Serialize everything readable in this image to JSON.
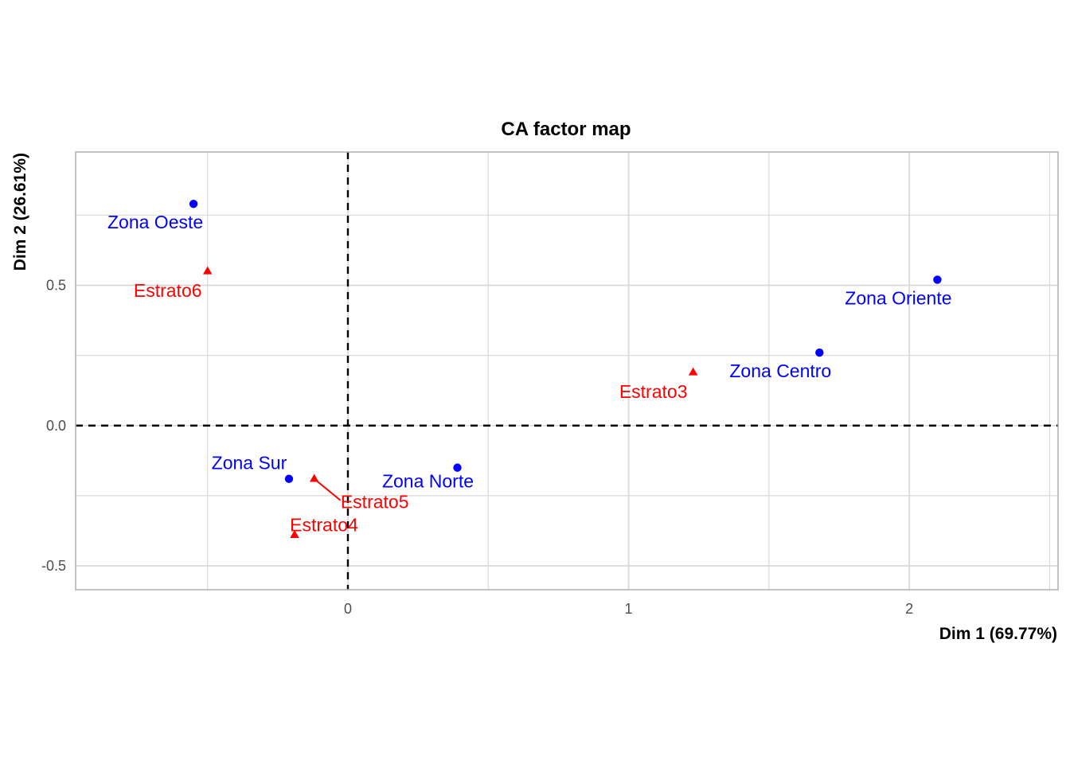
{
  "chart_data": {
    "type": "scatter",
    "title": "CA factor map",
    "xlabel": "Dim 1 (69.77%)",
    "ylabel": "Dim 2 (26.61%)",
    "xlim": [
      -0.97,
      2.53
    ],
    "ylim": [
      -0.585,
      0.975
    ],
    "x_ticks": [
      0,
      1,
      2
    ],
    "x_tick_labels": [
      "0",
      "1",
      "2"
    ],
    "y_ticks": [
      -0.5,
      0.0,
      0.5
    ],
    "y_tick_labels": [
      "-0.5",
      "0.0",
      "0.5"
    ],
    "x_minor_ticks": [
      -0.5,
      0.5,
      1.5,
      2.5
    ],
    "y_minor_ticks": [
      -0.25,
      0.25,
      0.75
    ],
    "grid": true,
    "reference_lines": {
      "x": 0,
      "y": 0,
      "style": "dashed"
    },
    "colors": {
      "rows": "#0000ff",
      "cols": "#ff0000",
      "grid": "#d9d9d9",
      "panel_border": "#b3b3b3"
    },
    "series": [
      {
        "group": "rows",
        "marker": "circle",
        "points": [
          {
            "label": "Zona Oeste",
            "x": -0.55,
            "y": 0.79
          },
          {
            "label": "Zona Oriente",
            "x": 2.1,
            "y": 0.52
          },
          {
            "label": "Zona Centro",
            "x": 1.68,
            "y": 0.26
          },
          {
            "label": "Zona Sur",
            "x": -0.21,
            "y": -0.19
          },
          {
            "label": "Zona Norte",
            "x": 0.39,
            "y": -0.15
          }
        ]
      },
      {
        "group": "cols",
        "marker": "triangle",
        "points": [
          {
            "label": "Estrato6",
            "x": -0.5,
            "y": 0.55
          },
          {
            "label": "Estrato3",
            "x": 1.23,
            "y": 0.19
          },
          {
            "label": "Estrato5",
            "x": -0.12,
            "y": -0.19
          },
          {
            "label": "Estrato4",
            "x": -0.19,
            "y": -0.39
          }
        ]
      }
    ]
  }
}
